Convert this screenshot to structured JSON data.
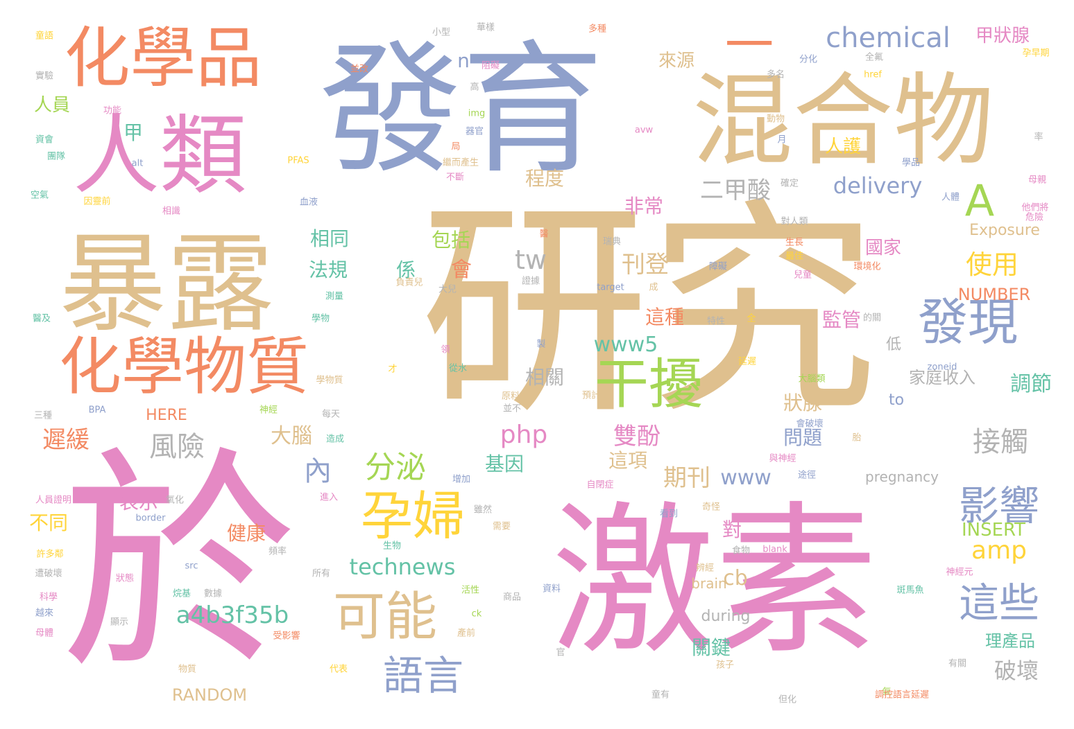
{
  "palette": {
    "pink": "#e589c4",
    "tan": "#dfc08e",
    "blue": "#8fa0cb",
    "orange": "#f38a63",
    "green": "#a5d654",
    "teal": "#64c2a6",
    "yellow": "#ffd43a",
    "gray": "#b3b3b3"
  },
  "words": {
    "w_yanjiu": "研究",
    "w_yu": "於",
    "w_jisu": "激素",
    "w_fayu": "發育",
    "w_hunhewu": "混合物",
    "w_baolu": "暴露",
    "w_renlei": "人類",
    "w_huaxuepin": "化學品",
    "w_huaxuewuzhi": "化學物質",
    "w_faxian": "發現",
    "w_ganrao": "干擾",
    "w_yunfu": "孕婦",
    "w_keneng": "可能",
    "w_yingxiang": "影響",
    "w_zhexie": "這些",
    "w_yuyan": "語言",
    "w_a": "A",
    "w_yi": "一",
    "w_chemical": "chemical",
    "w_erjiasuan": "二甲酸",
    "w_delivery": "delivery",
    "w_renhu": "人護",
    "w_laiyuan": "來源",
    "w_jiazhuangxian": "甲狀腺",
    "w_n": "n",
    "w_jia": "甲",
    "w_renyuan": "人員",
    "w_chengdu": "程度",
    "w_feichang": "非常",
    "w_kandeng": "刊登",
    "w_shiyong": "使用",
    "w_tw": "tw",
    "w_www5": "www5",
    "w_fengxian": "風險",
    "w_shuangfen": "雙酚",
    "w_php": "php",
    "w_nei": "內",
    "w_fenmi": "分泌",
    "w_technews": "technews",
    "w_a4b3f35b": "a4b3f35b",
    "w_amp": "amp",
    "w_insert": "INSERT",
    "w_number": "NUMBER",
    "w_jiechu": "接觸",
    "w_pohuai": "破壞",
    "w_tiaojie": "調節",
    "w_jianguan": "監管",
    "w_guojia": "國家",
    "w_zhuangxian": "狀腺",
    "w_wenti": "問題",
    "w_qikan": "期刊",
    "w_www": "www",
    "w_zhexiang": "這項",
    "w_dui": "對",
    "w_cb": "cb",
    "w_guanjian": "關鍵",
    "w_chihuan": "遲緩",
    "w_here": "HERE",
    "w_dana": "大腦",
    "w_jiyin": "基因",
    "w_xiangguan": "相關",
    "w_zhezhong": "這種",
    "w_biaoshi": "表示",
    "w_butong": "不同",
    "w_jiankang": "健康",
    "w_random": "RANDOM",
    "w_xiangtong": "相同",
    "w_fagui": "法規",
    "w_xi": "係",
    "w_hui": "會",
    "w_baokuo": "包括",
    "w_jiatingshouru": "家庭收入",
    "w_to": "to",
    "w_di": "低",
    "w_pregnancy": "pregnancy",
    "w_exposure": "Exposure",
    "w_lichanpin": "理產品",
    "w_during": "during",
    "w_brain": "brain",
    "w_tonghua": "童語",
    "w_xiaoxing": "小型",
    "w_huayang": "華樣",
    "w_duozhong": "多種",
    "w_shiyan": "實驗",
    "w_bingchao": "並改",
    "w_zhuhou": "阻礙",
    "w_gao": "高",
    "w_fenhua": "分化",
    "w_quanqiu": "全氟",
    "w_yunzaoqi": "孕早期",
    "w_href": "href",
    "w_duoge": "多名",
    "w_gongneng": "功能",
    "w_zihui": "資會",
    "w_tuandui": "團隊",
    "w_img": "img",
    "w_qiguan": "器官",
    "w_dongwu": "動物",
    "w_ju": "局",
    "w_avw": "avw",
    "w_lv": "率",
    "w_alt": "alt",
    "w_pfas": "PFAS",
    "w_yue": "月",
    "w_fuershengsheng": "繼而產生",
    "w_buduan": "不斷",
    "w_nianpin": "學品",
    "w_muqin": "母親",
    "w_kongqi": "空氣",
    "w_yinyou": "因靈前",
    "w_xueye": "血液",
    "w_queding": "確定",
    "w_renti": "人體",
    "w_tamen": "他們將",
    "w_xiangjiu": "相識",
    "w_weixian": "危險",
    "w_yi2": "醫",
    "w_duirenlei": "對人類",
    "w_ruidian": "瑞典",
    "w_shengzhang": "生長",
    "w_zuijia": "最佳",
    "w_huanjing": "環境化",
    "w_zhangai": "障礙",
    "w_ertong": "兒童",
    "w_fuzeer": "負責兒",
    "w_daer": "大兒",
    "w_target": "target",
    "w_cheng": "成",
    "w_zhengju": "證據",
    "w_celiang": "測量",
    "w_yiji": "醫及",
    "w_xuewu": "學物",
    "w_texing": "特性",
    "w_quan": "全",
    "w_deguan": "的關",
    "w_zhi": "製",
    "w_ling": "領",
    "w_congshui": "從水",
    "w_cai": "才",
    "w_xuewuzhi": "學物質",
    "w_yanchi": "延遲",
    "w_danaolei": "大腦類",
    "w_zoneid": "zoneid",
    "w_sanzhong": "三種",
    "w_bpa": "BPA",
    "w_shenjing": "神經",
    "w_meitian": "每天",
    "w_zaocheng": "造成",
    "w_yuanliao": "原料",
    "w_bingbu": "並不",
    "w_yuji": "預計",
    "w_huipohuai": "會破壞",
    "w_tai": "胎",
    "w_yushenjing": "與神經",
    "w_zengjia": "增加",
    "w_zibizheng": "自閉症",
    "w_tujing": "途徑",
    "w_jinru": "進入",
    "w_renyuanzhengming": "人員證明",
    "w_yanghua": "氧化",
    "w_suiran": "雖然",
    "w_qiguai": "奇怪",
    "w_border": "border",
    "w_kandao": "看到",
    "w_xuyao": "需要",
    "w_xuduo": "許多鄰",
    "w_shengwu": "生物",
    "w_pinlv": "頻率",
    "w_src": "src",
    "w_shiwu": "食物",
    "w_blank": "blank",
    "w_pohuai2": "遭破壞",
    "w_suoyou": "所有",
    "w_shenjingyuan": "神經元",
    "w_kexue": "科學",
    "w_shuju": "數據",
    "w_bianjiang": "辨經",
    "w_zhuangtai": "狀態",
    "w_huoxing": "活性",
    "w_shangpin": "商品",
    "w_banmayu": "斑馬魚",
    "w_yuelai": "越來",
    "w_ziliao": "資料",
    "w_fenji": "烷基",
    "w_ck": "ck",
    "w_xianshi": "顯示",
    "w_muti": "母體",
    "w_chanqian": "產前",
    "w_shouyingxiang": "受影響",
    "w_daibiao": "代表",
    "w_guan": "官",
    "w_haizi": "孩子",
    "w_youguan": "有關",
    "w_wuzhi": "物質",
    "w_qi": "氣",
    "w_tongyou": "童有",
    "w_danhua": "但化",
    "w_tiaokong": "調控語言延遲"
  }
}
